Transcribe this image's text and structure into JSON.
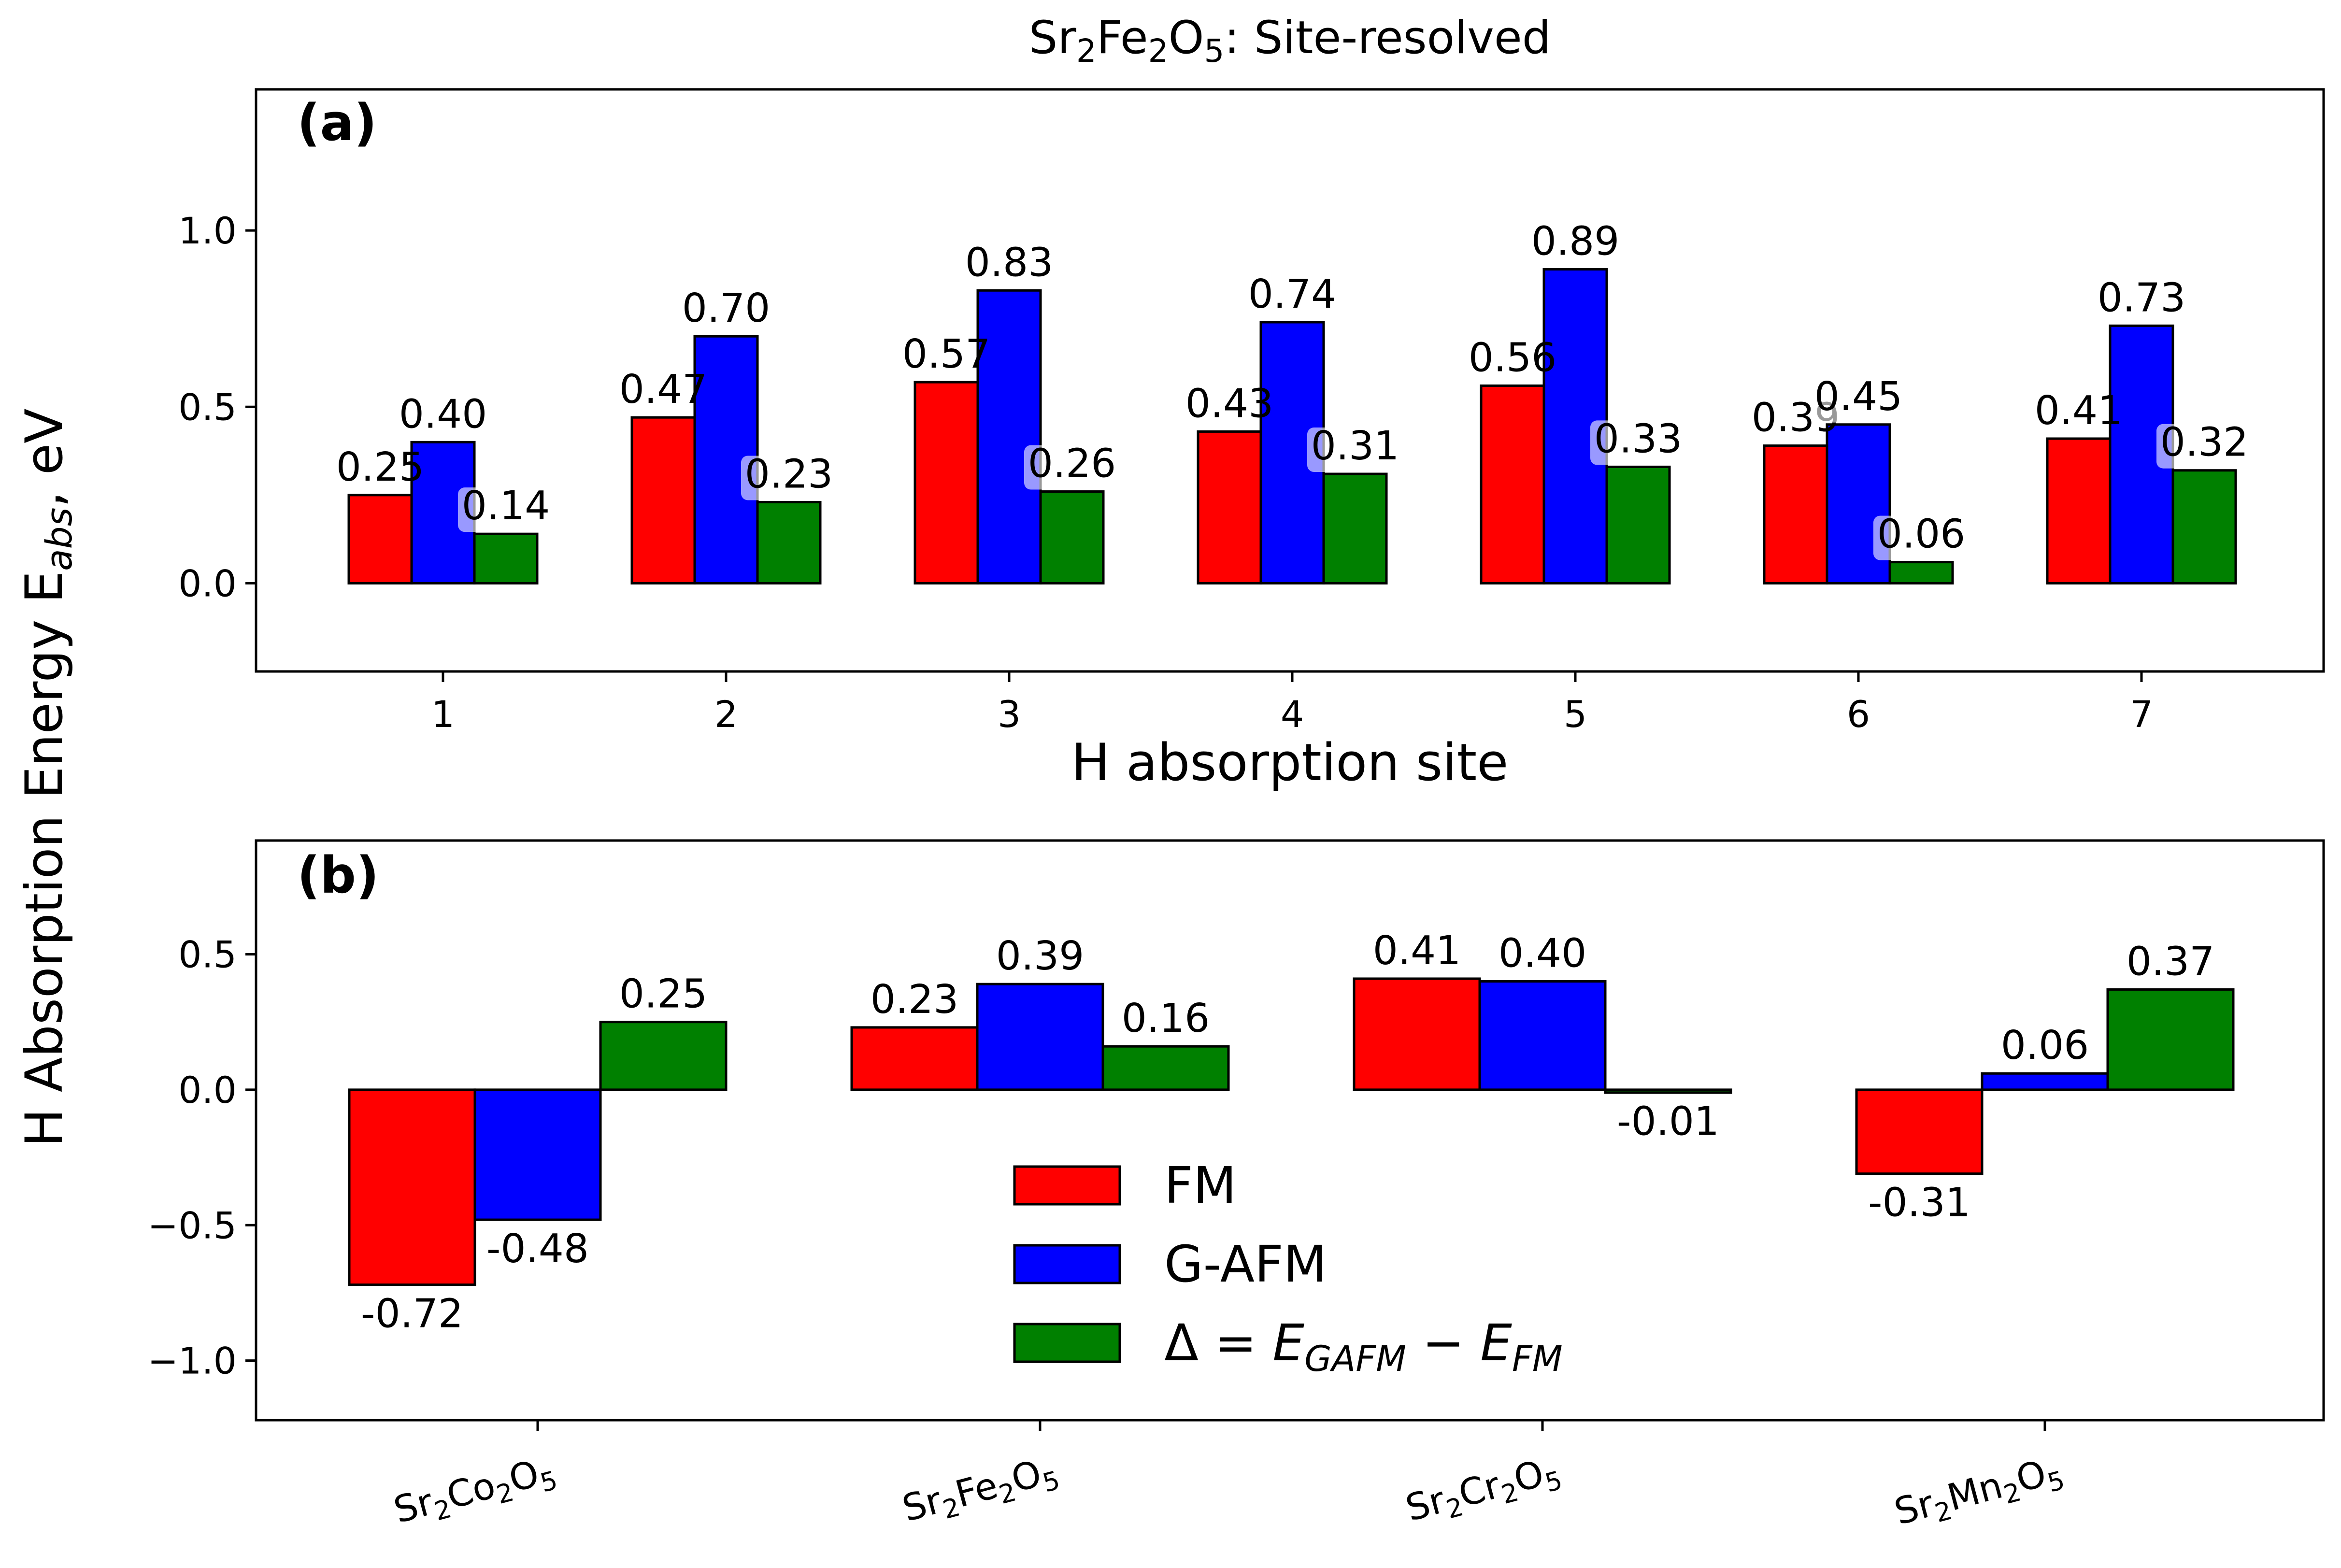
{
  "figure": {
    "title_parts": [
      "Sr",
      "2",
      "Fe",
      "2",
      "O",
      "5",
      ": Site-resolved"
    ],
    "ylabel_main": "H Absorption Energy E",
    "ylabel_sub": "abs",
    "ylabel_tail": ", eV"
  },
  "colors": {
    "FM": "#ff0000",
    "G-AFM": "#0000ff",
    "delta": "#008000",
    "label_box": "#ffffff"
  },
  "legend": {
    "fm": "FM",
    "gafm": "G-AFM",
    "delta_prefix": "Δ = ",
    "delta_e1": "E",
    "delta_s1": "GAFM",
    "delta_minus": " − ",
    "delta_e2": "E",
    "delta_s2": "FM"
  },
  "chart_data": [
    {
      "panel": "(a)",
      "type": "bar",
      "title": "Sr2Fe2O5: Site-resolved",
      "xlabel": "H absorption site",
      "ylabel": "H Absorption Energy E_abs, eV",
      "categories": [
        "1",
        "2",
        "3",
        "4",
        "5",
        "6",
        "7"
      ],
      "ylim": [
        -0.25,
        1.4
      ],
      "yticks": [
        "0.0",
        "0.5",
        "1.0"
      ],
      "ytick_values": [
        0.0,
        0.5,
        1.0
      ],
      "series": [
        {
          "name": "FM",
          "values": [
            0.25,
            0.47,
            0.57,
            0.43,
            0.56,
            0.39,
            0.41
          ],
          "labels": [
            "0.25",
            "0.47",
            "0.57",
            "0.43",
            "0.56",
            "0.39",
            "0.41"
          ]
        },
        {
          "name": "G-AFM",
          "values": [
            0.4,
            0.7,
            0.83,
            0.74,
            0.89,
            0.45,
            0.73
          ],
          "labels": [
            "0.40",
            "0.70",
            "0.83",
            "0.74",
            "0.89",
            "0.45",
            "0.73"
          ]
        },
        {
          "name": "Δ = E_GAFM − E_FM",
          "values": [
            0.14,
            0.23,
            0.26,
            0.31,
            0.33,
            0.06,
            0.32
          ],
          "labels": [
            "0.14",
            "0.23",
            "0.26",
            "0.31",
            "0.33",
            "0.06",
            "0.32"
          ]
        }
      ]
    },
    {
      "panel": "(b)",
      "type": "bar",
      "categories": [
        {
          "parts": [
            "Sr",
            "2",
            "Co",
            "2",
            "O",
            "5"
          ]
        },
        {
          "parts": [
            "Sr",
            "2",
            "Fe",
            "2",
            "O",
            "5"
          ]
        },
        {
          "parts": [
            "Sr",
            "2",
            "Cr",
            "2",
            "O",
            "5"
          ]
        },
        {
          "parts": [
            "Sr",
            "2",
            "Mn",
            "2",
            "O",
            "5"
          ]
        }
      ],
      "ylim": [
        -1.22,
        0.92
      ],
      "yticks": [
        "−1.0",
        "−0.5",
        "0.0",
        "0.5"
      ],
      "ytick_values": [
        -1.0,
        -0.5,
        0.0,
        0.5
      ],
      "series": [
        {
          "name": "FM",
          "values": [
            -0.72,
            0.23,
            0.41,
            -0.31
          ],
          "labels": [
            "-0.72",
            "0.23",
            "0.41",
            "-0.31"
          ]
        },
        {
          "name": "G-AFM",
          "values": [
            -0.48,
            0.39,
            0.4,
            0.06
          ],
          "labels": [
            "-0.48",
            "0.39",
            "0.40",
            "0.06"
          ]
        },
        {
          "name": "Δ = E_GAFM − E_FM",
          "values": [
            0.25,
            0.16,
            -0.01,
            0.37
          ],
          "labels": [
            "0.25",
            "0.16",
            "-0.01",
            "0.37"
          ]
        }
      ]
    }
  ]
}
